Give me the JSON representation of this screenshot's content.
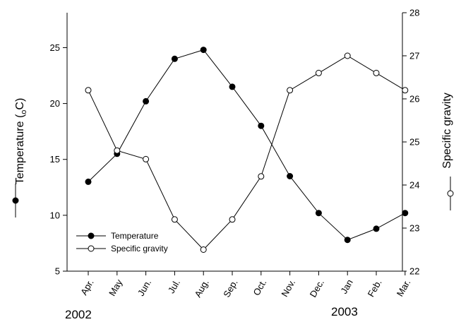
{
  "chart_data": {
    "type": "line",
    "categories": [
      "Apr.",
      "May",
      "Jun.",
      "Jul.",
      "Aug.",
      "Sep.",
      "Oct.",
      "Nov.",
      "Dec.",
      "Jan",
      "Feb.",
      "Mar."
    ],
    "period_labels": [
      "2002",
      "2003"
    ],
    "series": [
      {
        "name": "Temperature",
        "axis": "left",
        "marker": "filled-circle",
        "values": [
          13.0,
          15.5,
          20.2,
          24.0,
          24.8,
          21.5,
          18.0,
          13.5,
          10.2,
          7.8,
          8.8,
          10.2
        ]
      },
      {
        "name": "Specific gravity",
        "axis": "right",
        "marker": "open-circle",
        "values": [
          26.2,
          24.8,
          24.6,
          23.2,
          22.5,
          23.2,
          24.2,
          26.2,
          26.6,
          27.0,
          26.6,
          26.2
        ]
      }
    ],
    "y_left": {
      "label_prefix": "Temperature (",
      "label_sub": "o",
      "label_suffix": "C)",
      "ylim": [
        5,
        28.125
      ],
      "ticks": [
        5,
        10,
        15,
        20,
        25
      ]
    },
    "y_right": {
      "label": "Specific gravity",
      "ylim": [
        22,
        28
      ],
      "ticks": [
        22,
        23,
        24,
        25,
        26,
        27,
        28
      ]
    },
    "legend": {
      "position": "bottom-left",
      "entries": [
        "Temperature",
        "Specific gravity"
      ]
    },
    "grid": false,
    "colors": {
      "line": "#000000",
      "filled_marker": "#000000",
      "open_marker": "#ffffff"
    }
  }
}
